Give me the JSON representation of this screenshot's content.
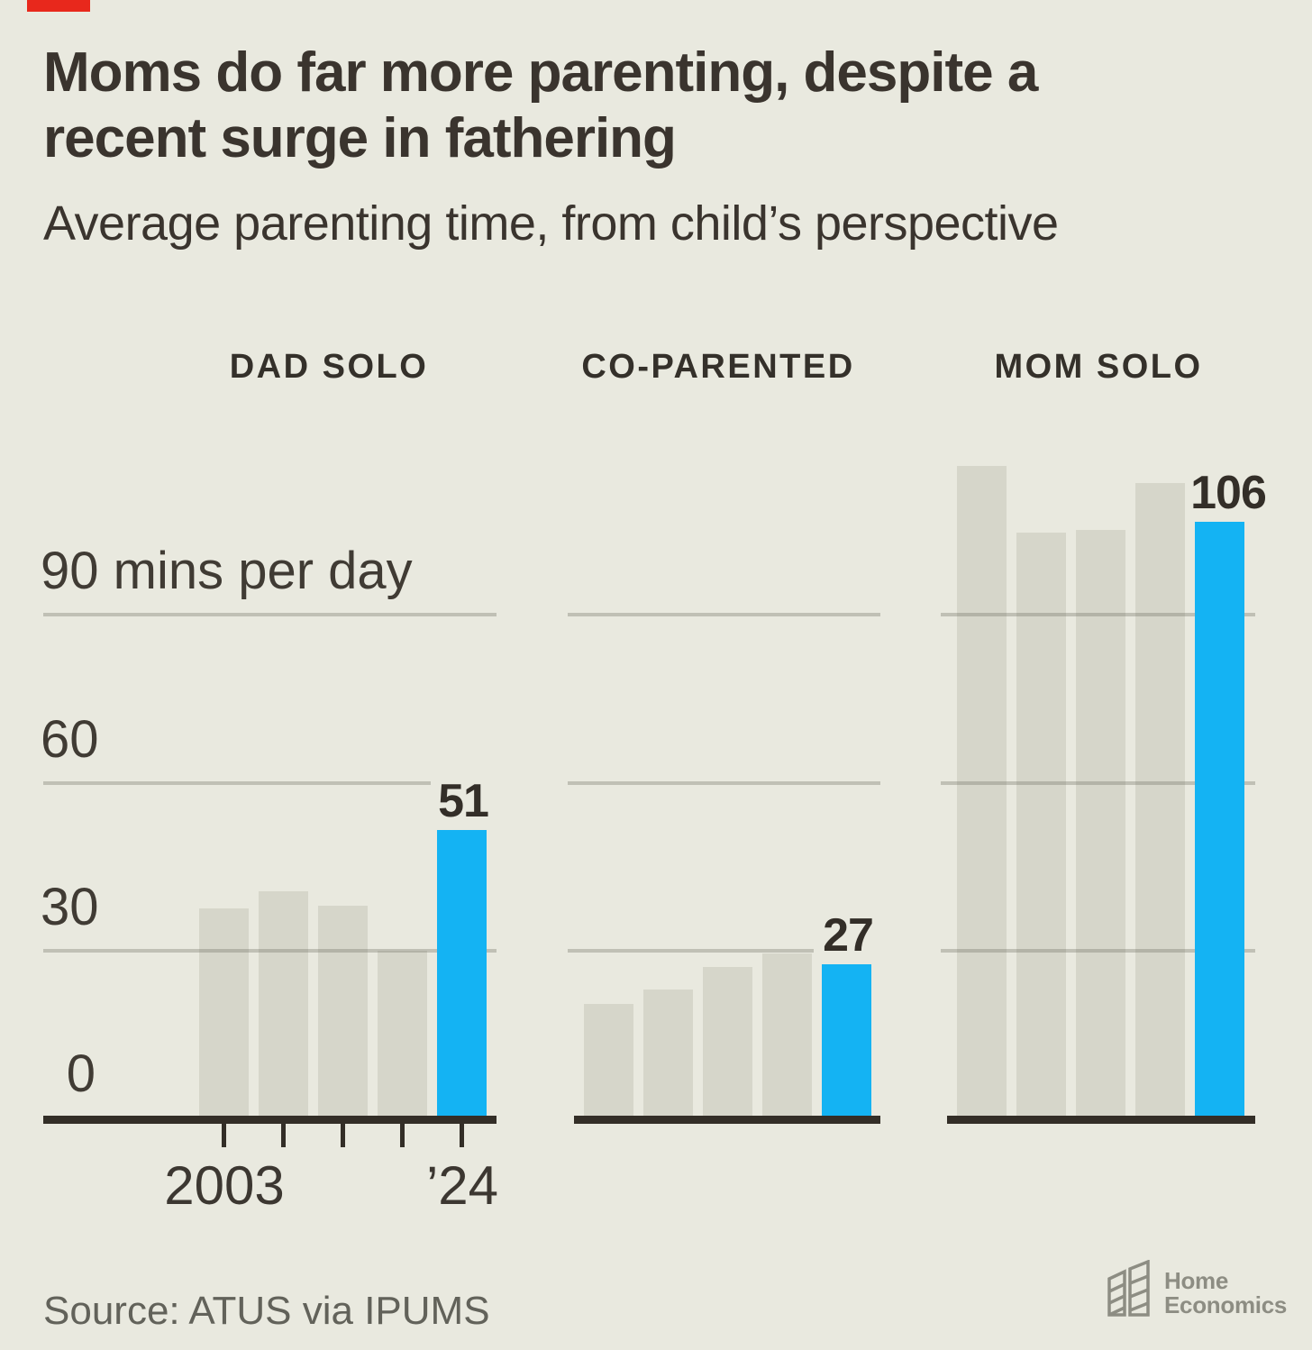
{
  "page": {
    "background_color": "#e9e9df",
    "accent_color": "#14b3f3",
    "red_mark_color": "#e8281c"
  },
  "title": {
    "line1": "Moms do far more parenting, despite a",
    "line2": "recent surge in fathering"
  },
  "subtitle": "Average parenting time, from child’s perspective",
  "chart_data": {
    "type": "bar",
    "unit": "minutes per day",
    "categories": [
      "2003",
      "",
      "",
      "",
      "’24"
    ],
    "x_tick_labels": {
      "first": "2003",
      "last": "’24"
    },
    "y_axis": {
      "ticks": [
        0,
        30,
        60,
        90
      ],
      "display": [
        "90 mins per day",
        "60",
        "30",
        "0"
      ],
      "gridlines_at": [
        90,
        60,
        30
      ],
      "ylim": [
        0,
        120
      ],
      "grid": "on"
    },
    "bar_color": "#d6d6ca",
    "highlight_color": "#14b3f3",
    "groups": [
      {
        "label": "DAD SOLO",
        "values": [
          37,
          40,
          37.5,
          29.5,
          51
        ],
        "highlight_index": 4,
        "highlight_label": "51"
      },
      {
        "label": "CO-PARENTED",
        "values": [
          20,
          22.5,
          26.5,
          29,
          27
        ],
        "highlight_index": 4,
        "highlight_label": "27"
      },
      {
        "label": "MOM SOLO",
        "values": [
          116,
          104,
          104.5,
          113,
          106
        ],
        "highlight_index": 4,
        "highlight_label": "106"
      }
    ]
  },
  "source": "Source: ATUS via IPUMS",
  "logo": {
    "line1": "Home",
    "line2": "Economics"
  }
}
